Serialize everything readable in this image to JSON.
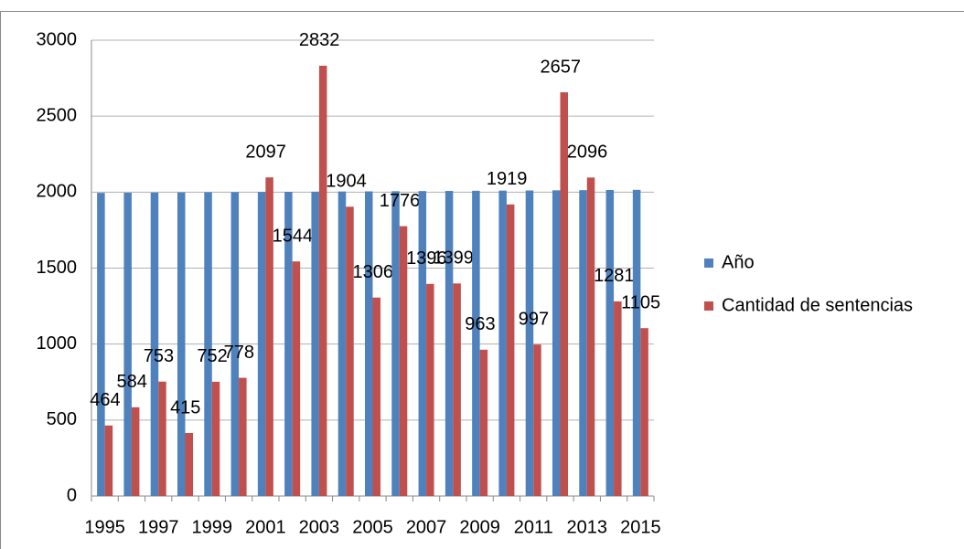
{
  "chart_data": {
    "type": "bar",
    "categories": [
      "1995",
      null,
      "1997",
      null,
      "1999",
      null,
      "2001",
      null,
      "2003",
      null,
      "2005",
      null,
      "2007",
      null,
      "2009",
      null,
      "2011",
      null,
      "2013",
      null,
      "2015"
    ],
    "series": [
      {
        "name": "Año",
        "color": "#4f81bd",
        "values": [
          1995,
          1996,
          1997,
          1998,
          1999,
          2000,
          2001,
          2002,
          2003,
          2004,
          2005,
          2006,
          2007,
          2008,
          2009,
          2010,
          2011,
          2012,
          2013,
          2014,
          2015
        ],
        "show_labels": false
      },
      {
        "name": "Cantidad de sentencias",
        "color": "#c0504d",
        "values": [
          464,
          584,
          753,
          415,
          752,
          778,
          2097,
          1544,
          2832,
          1904,
          1306,
          1776,
          1396,
          1399,
          963,
          1919,
          997,
          2657,
          2096,
          1281,
          1105
        ],
        "show_labels": true
      }
    ],
    "ylim": [
      0,
      3000
    ],
    "yticks": [
      0,
      500,
      1000,
      1500,
      2000,
      2500,
      3000
    ],
    "grid": true,
    "legend": "right"
  }
}
